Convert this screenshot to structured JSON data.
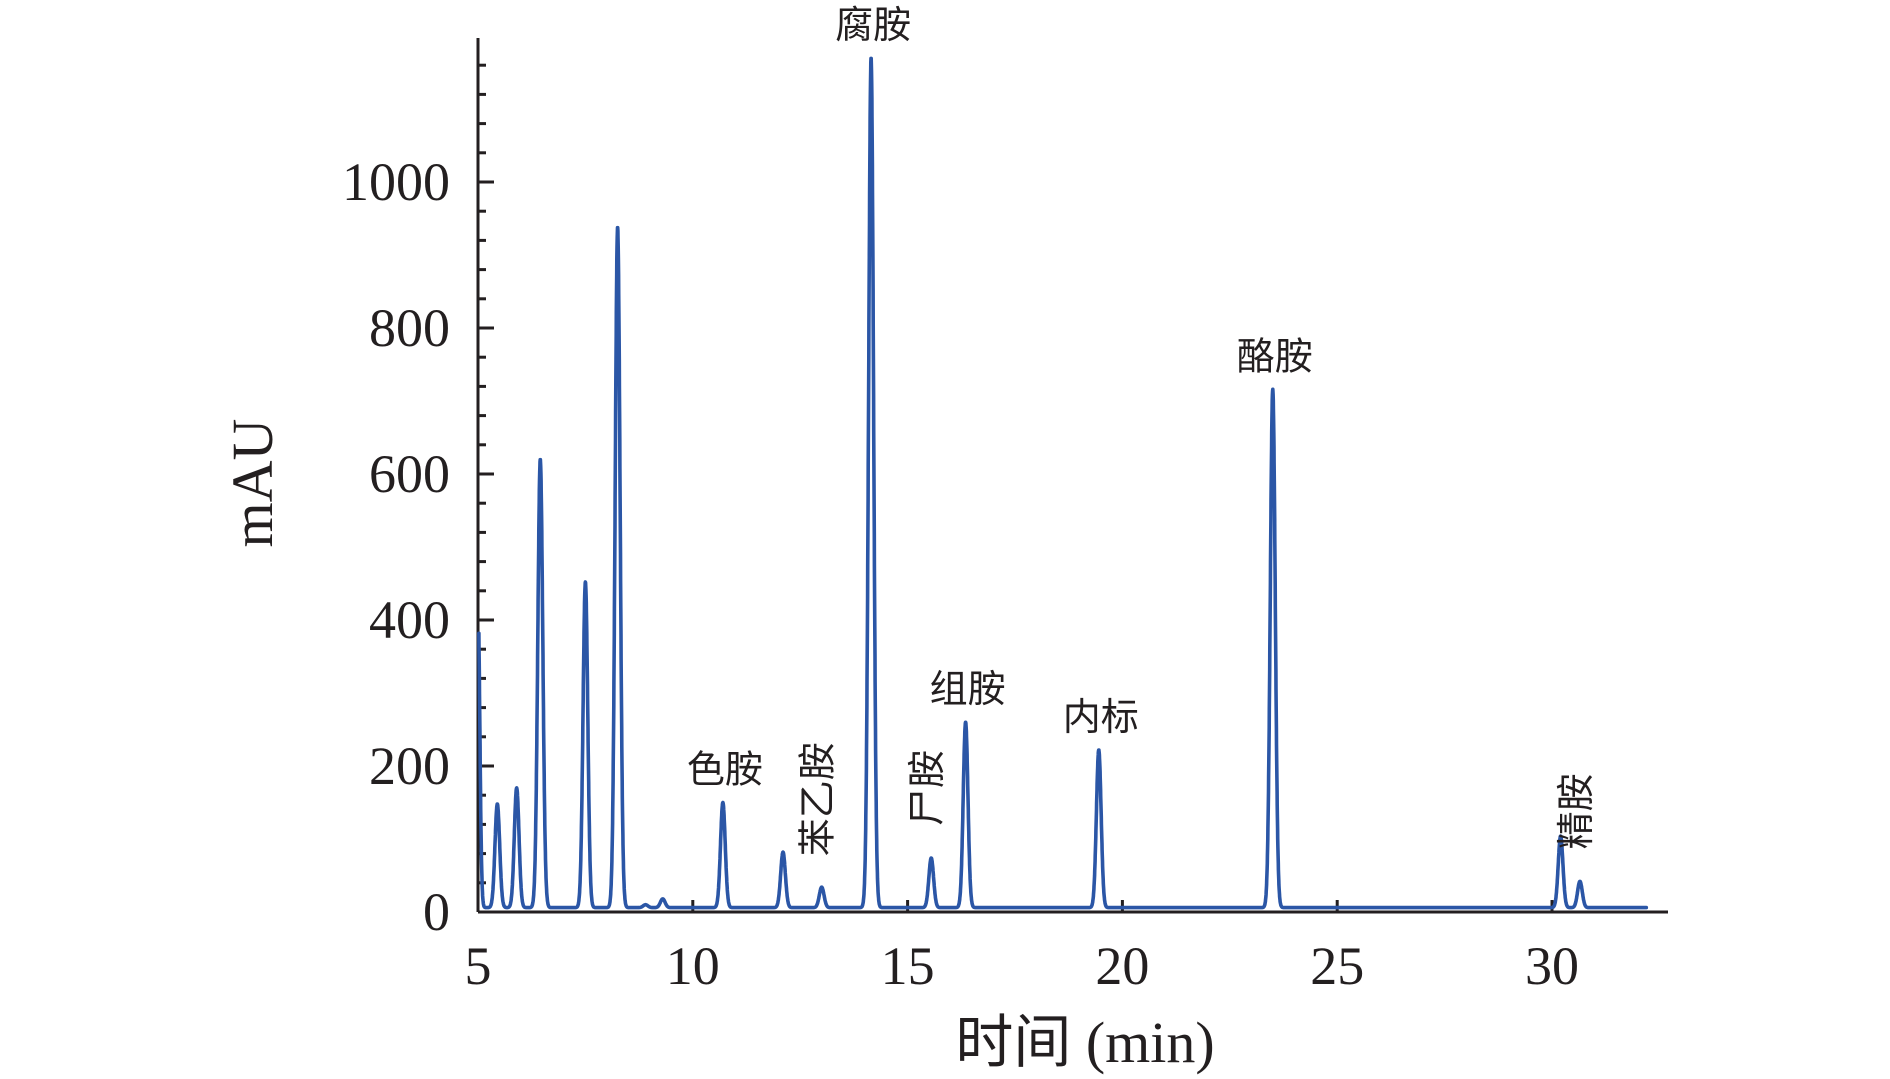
{
  "chart_data": {
    "type": "line",
    "title": "",
    "xlabel": "时间 (min)",
    "ylabel": "mAU",
    "xlim": [
      5,
      32.5
    ],
    "ylim": [
      0,
      1200
    ],
    "x_ticks": [
      5,
      10,
      15,
      20,
      25,
      30
    ],
    "y_ticks": [
      0,
      200,
      400,
      600,
      800,
      1000
    ],
    "grid": false,
    "legend": "none",
    "colors": {
      "trace": "#2b56a6",
      "axis": "#231f20"
    },
    "baseline": 6,
    "peaks": [
      {
        "x": 5.45,
        "height": 148,
        "label": ""
      },
      {
        "x": 5.9,
        "height": 170,
        "label": ""
      },
      {
        "x": 6.45,
        "height": 620,
        "label": ""
      },
      {
        "x": 7.5,
        "height": 452,
        "label": ""
      },
      {
        "x": 8.25,
        "height": 938,
        "label": ""
      },
      {
        "x": 8.9,
        "height": 10,
        "label": ""
      },
      {
        "x": 9.3,
        "height": 18,
        "label": ""
      },
      {
        "x": 10.7,
        "height": 150,
        "label": "色胺"
      },
      {
        "x": 12.1,
        "height": 82,
        "label": ""
      },
      {
        "x": 13.0,
        "height": 34,
        "label": "苯乙胺"
      },
      {
        "x": 14.15,
        "height": 1170,
        "label": "腐胺"
      },
      {
        "x": 15.55,
        "height": 74,
        "label": "尸胺"
      },
      {
        "x": 16.35,
        "height": 260,
        "label": "组胺"
      },
      {
        "x": 19.45,
        "height": 222,
        "label": "内标"
      },
      {
        "x": 23.5,
        "height": 716,
        "label": "酪胺"
      },
      {
        "x": 30.2,
        "height": 104,
        "label": ""
      },
      {
        "x": 30.65,
        "height": 42,
        "label": "精胺"
      }
    ],
    "annotations": [
      {
        "text": "腐胺",
        "x": 14.15,
        "y": 1170,
        "orientation": "horizontal"
      },
      {
        "text": "色胺",
        "x": 10.7,
        "y": 150,
        "orientation": "horizontal"
      },
      {
        "text": "苯乙胺",
        "x": 13.0,
        "y": 34,
        "orientation": "vertical"
      },
      {
        "text": "尸胺",
        "x": 15.55,
        "y": 74,
        "orientation": "vertical"
      },
      {
        "text": "组胺",
        "x": 16.35,
        "y": 260,
        "orientation": "horizontal"
      },
      {
        "text": "内标",
        "x": 19.45,
        "y": 222,
        "orientation": "horizontal"
      },
      {
        "text": "酪胺",
        "x": 23.5,
        "y": 716,
        "orientation": "horizontal"
      },
      {
        "text": "精胺",
        "x": 30.65,
        "y": 42,
        "orientation": "vertical"
      }
    ]
  }
}
